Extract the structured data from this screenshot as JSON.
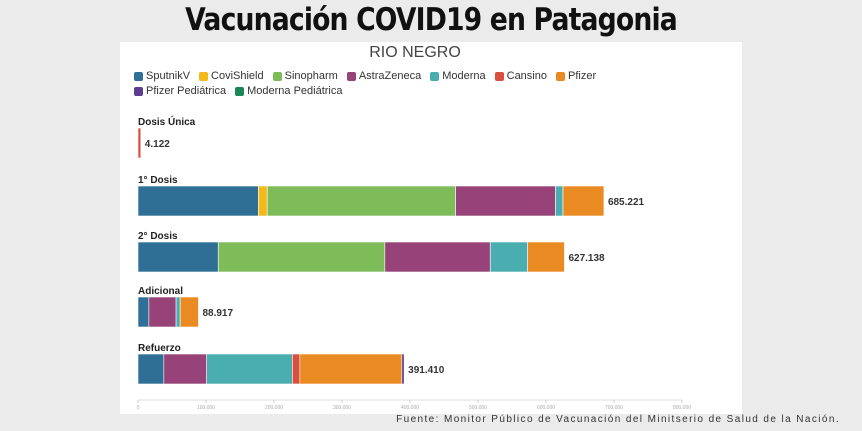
{
  "title": "Vacunación COVID19 en Patagonia",
  "region": "RIO NEGRO",
  "footer": "Fuente: Monitor Público de Vacunación del Minitserio de Salud de la Nación.",
  "colors": {
    "SputnikV": "#2f6f96",
    "CoviShield": "#f2b81c",
    "Sinopharm": "#7ebc59",
    "AstraZeneca": "#974379",
    "Moderna": "#4aaeb0",
    "Cansino": "#d9503f",
    "Pfizer": "#ea8a23",
    "Pfizer Pediátrica": "#5c3d91",
    "Moderna Pediátrica": "#1a8756"
  },
  "chart_data": {
    "type": "bar",
    "orientation": "horizontal",
    "stacked": true,
    "region": "RIO NEGRO",
    "legend": [
      "SputnikV",
      "CoviShield",
      "Sinopharm",
      "AstraZeneca",
      "Moderna",
      "Cansino",
      "Pfizer",
      "Pfizer Pediátrica",
      "Moderna Pediátrica"
    ],
    "legend_position": "top",
    "xlim": [
      0,
      800000
    ],
    "x_ticks": [
      "0",
      "100,000",
      "200,000",
      "300,000",
      "400,000",
      "500,000",
      "600,000",
      "700,000",
      "800,000"
    ],
    "categories": [
      {
        "label": "Dosis Única",
        "total_label": "4.122",
        "segments": [
          {
            "name": "Cansino",
            "value": 4122
          }
        ]
      },
      {
        "label": "1° Dosis",
        "total_label": "685.221",
        "segments": [
          {
            "name": "SputnikV",
            "value": 177000
          },
          {
            "name": "CoviShield",
            "value": 13000
          },
          {
            "name": "Sinopharm",
            "value": 277000
          },
          {
            "name": "AstraZeneca",
            "value": 147000
          },
          {
            "name": "Moderna",
            "value": 11000
          },
          {
            "name": "Pfizer",
            "value": 60221
          }
        ]
      },
      {
        "label": "2° Dosis",
        "total_label": "627.138",
        "segments": [
          {
            "name": "SputnikV",
            "value": 118000
          },
          {
            "name": "Sinopharm",
            "value": 245000
          },
          {
            "name": "AstraZeneca",
            "value": 155000
          },
          {
            "name": "Moderna",
            "value": 55000
          },
          {
            "name": "Pfizer",
            "value": 54138
          }
        ]
      },
      {
        "label": "Adicional",
        "total_label": "88.917",
        "segments": [
          {
            "name": "SputnikV",
            "value": 16000
          },
          {
            "name": "AstraZeneca",
            "value": 40000
          },
          {
            "name": "Moderna",
            "value": 6000
          },
          {
            "name": "Pfizer",
            "value": 26917
          }
        ]
      },
      {
        "label": "Refuerzo",
        "total_label": "391.410",
        "segments": [
          {
            "name": "SputnikV",
            "value": 38000
          },
          {
            "name": "AstraZeneca",
            "value": 63000
          },
          {
            "name": "Moderna",
            "value": 126000
          },
          {
            "name": "Cansino",
            "value": 11000
          },
          {
            "name": "Pfizer",
            "value": 150000
          },
          {
            "name": "Pfizer Pediátrica",
            "value": 3410
          }
        ]
      }
    ]
  }
}
